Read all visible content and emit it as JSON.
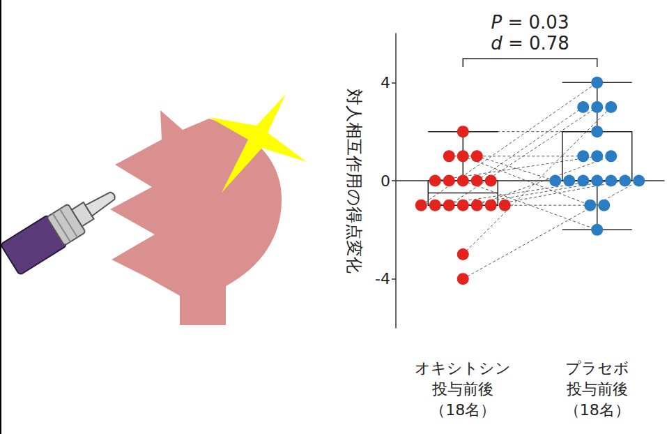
{
  "chart_data": {
    "type": "boxplot",
    "y_label": "対人相互作用の得点変化",
    "categories": [
      "オキシトシン\n投与前後\n（18名）",
      "プラセボ\n投与前後\n（18名）"
    ],
    "values": [
      [
        2,
        1,
        1,
        1,
        0,
        0,
        0,
        0,
        0,
        -1,
        -1,
        -1,
        -1,
        -1,
        -1,
        -1,
        -3,
        -4
      ],
      [
        2,
        1,
        -1,
        0,
        1,
        0,
        -2,
        3,
        0,
        4,
        0,
        3,
        0,
        1,
        0,
        -1,
        3,
        0
      ]
    ],
    "box": [
      [
        -1,
        -1,
        -0.5,
        0,
        2
      ],
      [
        -2,
        0,
        0,
        2,
        4
      ]
    ],
    "colors": [
      "#e3231e",
      "#2a7cc3"
    ],
    "marker": "circle",
    "line_style": "dashed",
    "annotations": [
      "P = 0.03",
      "d = 0.78"
    ],
    "ylim": [
      -6,
      6
    ],
    "yticks": [
      -4,
      0,
      4
    ],
    "grid": false
  }
}
